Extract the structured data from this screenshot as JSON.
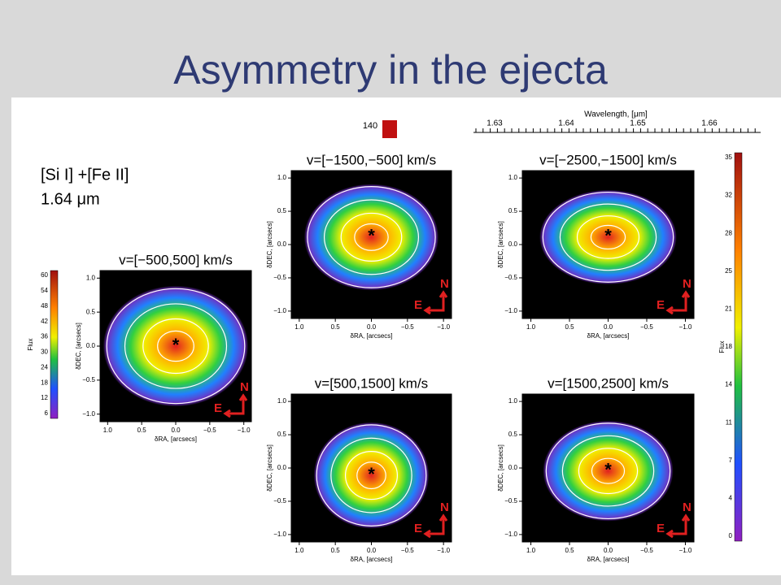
{
  "title": "Asymmetry in the ejecta",
  "label": [
    "[Si I] +[Fe II]",
    "1.64 μm"
  ],
  "panels": [
    {
      "title": "v=[−500,500] km/s"
    },
    {
      "title": "v=[−1500,−500] km/s"
    },
    {
      "title": "v=[−2500,−1500] km/s"
    },
    {
      "title": "v=[500,1500] km/s"
    },
    {
      "title": "v=[1500,2500] km/s"
    }
  ],
  "axis": {
    "x_label": "δRA, [arcsecs]",
    "y_label": "δDEC, [arcsecs]",
    "x_ticks": [
      "1.0",
      "0.5",
      "0.0",
      "−0.5",
      "−1.0"
    ],
    "y_ticks": [
      "1.0",
      "0.5",
      "0.0",
      "−0.5",
      "−1.0"
    ],
    "north": "N",
    "east": "E"
  },
  "colorbar_left": {
    "label": "Flux",
    "ticks": [
      "60",
      "54",
      "48",
      "42",
      "36",
      "30",
      "24",
      "18",
      "12",
      "6"
    ]
  },
  "colorbar_right": {
    "label": "Flux",
    "ticks": [
      "35",
      "32",
      "28",
      "25",
      "21",
      "18",
      "14",
      "11",
      "7",
      "4",
      "0"
    ]
  },
  "wavelength": {
    "label": "Wavelength, [μm]",
    "ticks": [
      "1.63",
      "1.64",
      "1.65",
      "1.66"
    ],
    "marker": "140"
  }
}
